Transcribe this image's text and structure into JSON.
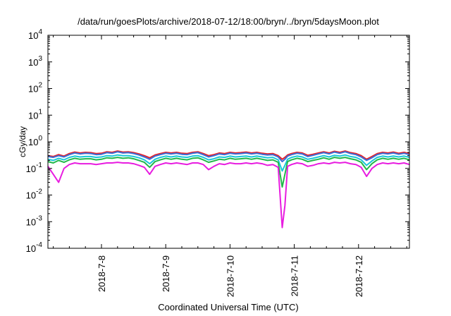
{
  "chart_data": {
    "type": "line",
    "title": "/data/run/goesPlots/archive/2018-07-12/18:00/bryn/../bryn/5daysMoon.plot",
    "xlabel": "Coordinated Universal Time (UTC)",
    "ylabel": "cGy/day",
    "yscale": "log",
    "ylim": [
      0.0001,
      10000
    ],
    "xlim": [
      "2018-07-07 04:00",
      "2018-07-12 19:00"
    ],
    "grid": false,
    "legend": "none",
    "y_ticks": [
      {
        "base": "10",
        "exp": "-4"
      },
      {
        "base": "10",
        "exp": "-3"
      },
      {
        "base": "10",
        "exp": "-2"
      },
      {
        "base": "10",
        "exp": "-1"
      },
      {
        "base": "10",
        "exp": "0"
      },
      {
        "base": "10",
        "exp": "1"
      },
      {
        "base": "10",
        "exp": "2"
      },
      {
        "base": "10",
        "exp": "3"
      },
      {
        "base": "10",
        "exp": "4"
      }
    ],
    "x_ticks": [
      {
        "label": "2018-7-8",
        "date": "2018-07-08"
      },
      {
        "label": "2018-7-9",
        "date": "2018-07-09"
      },
      {
        "label": "2018-7-10",
        "date": "2018-07-10"
      },
      {
        "label": "2018-7-11",
        "date": "2018-07-11"
      },
      {
        "label": "2018-7-12",
        "date": "2018-07-12"
      }
    ],
    "x": [
      "2018-07-07 04:00",
      "2018-07-07 06:00",
      "2018-07-07 08:00",
      "2018-07-07 10:00",
      "2018-07-07 12:00",
      "2018-07-07 14:00",
      "2018-07-07 16:00",
      "2018-07-07 18:00",
      "2018-07-07 20:00",
      "2018-07-07 22:00",
      "2018-07-08 00:00",
      "2018-07-08 02:00",
      "2018-07-08 04:00",
      "2018-07-08 06:00",
      "2018-07-08 08:00",
      "2018-07-08 10:00",
      "2018-07-08 12:00",
      "2018-07-08 14:00",
      "2018-07-08 16:00",
      "2018-07-08 18:00",
      "2018-07-08 20:00",
      "2018-07-08 22:00",
      "2018-07-09 00:00",
      "2018-07-09 02:00",
      "2018-07-09 04:00",
      "2018-07-09 06:00",
      "2018-07-09 08:00",
      "2018-07-09 10:00",
      "2018-07-09 12:00",
      "2018-07-09 14:00",
      "2018-07-09 16:00",
      "2018-07-09 18:00",
      "2018-07-09 20:00",
      "2018-07-09 22:00",
      "2018-07-10 00:00",
      "2018-07-10 02:00",
      "2018-07-10 04:00",
      "2018-07-10 06:00",
      "2018-07-10 08:00",
      "2018-07-10 10:00",
      "2018-07-10 12:00",
      "2018-07-10 14:00",
      "2018-07-10 16:00",
      "2018-07-10 18:00",
      "2018-07-10 19:30",
      "2018-07-10 20:30",
      "2018-07-10 21:30",
      "2018-07-10 23:00",
      "2018-07-11 01:00",
      "2018-07-11 03:00",
      "2018-07-11 05:00",
      "2018-07-11 07:00",
      "2018-07-11 09:00",
      "2018-07-11 11:00",
      "2018-07-11 13:00",
      "2018-07-11 15:00",
      "2018-07-11 17:00",
      "2018-07-11 19:00",
      "2018-07-11 21:00",
      "2018-07-11 23:00",
      "2018-07-12 01:00",
      "2018-07-12 03:00",
      "2018-07-12 05:00",
      "2018-07-12 07:00",
      "2018-07-12 09:00",
      "2018-07-12 11:00",
      "2018-07-12 13:00",
      "2018-07-12 15:00",
      "2018-07-12 17:00",
      "2018-07-12 19:00"
    ],
    "series": [
      {
        "color": "#e8212a",
        "values": [
          0.3,
          0.28,
          0.33,
          0.29,
          0.36,
          0.41,
          0.38,
          0.4,
          0.39,
          0.36,
          0.37,
          0.42,
          0.4,
          0.45,
          0.41,
          0.42,
          0.39,
          0.35,
          0.3,
          0.25,
          0.32,
          0.36,
          0.4,
          0.38,
          0.4,
          0.37,
          0.36,
          0.4,
          0.42,
          0.36,
          0.3,
          0.33,
          0.38,
          0.36,
          0.4,
          0.38,
          0.39,
          0.41,
          0.38,
          0.4,
          0.37,
          0.35,
          0.36,
          0.3,
          0.22,
          0.26,
          0.32,
          0.36,
          0.4,
          0.38,
          0.31,
          0.34,
          0.38,
          0.42,
          0.38,
          0.44,
          0.4,
          0.45,
          0.39,
          0.36,
          0.3,
          0.22,
          0.28,
          0.36,
          0.4,
          0.38,
          0.41,
          0.37,
          0.4,
          0.36
        ]
      },
      {
        "color": "#3a6fd8",
        "values": [
          0.28,
          0.26,
          0.3,
          0.27,
          0.33,
          0.38,
          0.35,
          0.37,
          0.36,
          0.33,
          0.34,
          0.39,
          0.37,
          0.42,
          0.38,
          0.39,
          0.36,
          0.32,
          0.27,
          0.22,
          0.29,
          0.33,
          0.37,
          0.35,
          0.37,
          0.34,
          0.33,
          0.37,
          0.39,
          0.33,
          0.27,
          0.3,
          0.35,
          0.33,
          0.37,
          0.35,
          0.36,
          0.38,
          0.35,
          0.37,
          0.34,
          0.32,
          0.33,
          0.27,
          0.18,
          0.22,
          0.29,
          0.33,
          0.37,
          0.35,
          0.28,
          0.31,
          0.35,
          0.39,
          0.35,
          0.41,
          0.37,
          0.42,
          0.36,
          0.33,
          0.27,
          0.2,
          0.25,
          0.33,
          0.37,
          0.35,
          0.38,
          0.34,
          0.37,
          0.33
        ]
      },
      {
        "color": "#19c8d8",
        "values": [
          0.22,
          0.2,
          0.24,
          0.21,
          0.26,
          0.29,
          0.27,
          0.28,
          0.28,
          0.26,
          0.27,
          0.3,
          0.29,
          0.32,
          0.3,
          0.3,
          0.28,
          0.25,
          0.21,
          0.15,
          0.22,
          0.26,
          0.29,
          0.27,
          0.29,
          0.27,
          0.26,
          0.29,
          0.3,
          0.26,
          0.21,
          0.23,
          0.27,
          0.26,
          0.29,
          0.27,
          0.28,
          0.29,
          0.27,
          0.29,
          0.27,
          0.25,
          0.26,
          0.21,
          0.08,
          0.13,
          0.22,
          0.26,
          0.29,
          0.27,
          0.22,
          0.24,
          0.27,
          0.3,
          0.27,
          0.31,
          0.29,
          0.32,
          0.28,
          0.26,
          0.21,
          0.13,
          0.19,
          0.26,
          0.29,
          0.27,
          0.29,
          0.27,
          0.29,
          0.26
        ]
      },
      {
        "color": "#21b84a",
        "values": [
          0.18,
          0.16,
          0.2,
          0.17,
          0.21,
          0.24,
          0.22,
          0.23,
          0.23,
          0.21,
          0.22,
          0.25,
          0.24,
          0.26,
          0.24,
          0.25,
          0.23,
          0.2,
          0.17,
          0.11,
          0.18,
          0.21,
          0.24,
          0.22,
          0.24,
          0.22,
          0.21,
          0.24,
          0.25,
          0.21,
          0.17,
          0.19,
          0.22,
          0.21,
          0.24,
          0.22,
          0.23,
          0.24,
          0.22,
          0.24,
          0.22,
          0.2,
          0.21,
          0.17,
          0.02,
          0.06,
          0.18,
          0.21,
          0.24,
          0.22,
          0.18,
          0.2,
          0.22,
          0.25,
          0.22,
          0.26,
          0.24,
          0.26,
          0.23,
          0.21,
          0.17,
          0.09,
          0.15,
          0.21,
          0.24,
          0.22,
          0.24,
          0.22,
          0.24,
          0.21
        ]
      },
      {
        "color": "#e81ce0",
        "values": [
          0.12,
          0.06,
          0.03,
          0.1,
          0.14,
          0.16,
          0.15,
          0.15,
          0.15,
          0.14,
          0.15,
          0.16,
          0.16,
          0.17,
          0.16,
          0.16,
          0.15,
          0.13,
          0.11,
          0.06,
          0.12,
          0.14,
          0.16,
          0.15,
          0.16,
          0.15,
          0.14,
          0.16,
          0.16,
          0.14,
          0.09,
          0.12,
          0.15,
          0.14,
          0.16,
          0.15,
          0.15,
          0.16,
          0.15,
          0.16,
          0.15,
          0.13,
          0.14,
          0.11,
          0.0006,
          0.004,
          0.12,
          0.14,
          0.16,
          0.15,
          0.12,
          0.13,
          0.15,
          0.16,
          0.15,
          0.17,
          0.16,
          0.17,
          0.15,
          0.14,
          0.11,
          0.05,
          0.1,
          0.14,
          0.16,
          0.15,
          0.16,
          0.15,
          0.16,
          0.14
        ]
      }
    ]
  }
}
